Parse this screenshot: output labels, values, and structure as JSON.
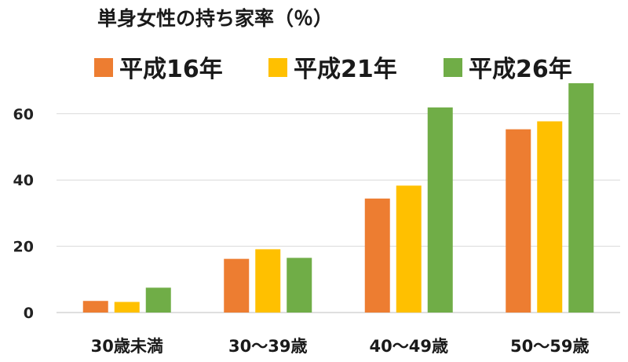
{
  "chart_data": {
    "type": "bar",
    "title": "単身女性の持ち家率（％）",
    "categories": [
      "30歳未満",
      "30～39歳",
      "40～49歳",
      "50～59歳"
    ],
    "series": [
      {
        "name": "平成16年",
        "color": "#ED7D31",
        "values": [
          3.5,
          16.2,
          34.4,
          55.3
        ]
      },
      {
        "name": "平成21年",
        "color": "#FFC000",
        "values": [
          3.2,
          19.1,
          38.3,
          57.7
        ]
      },
      {
        "name": "平成26年",
        "color": "#70AD47",
        "values": [
          7.5,
          16.5,
          61.9,
          69.2
        ]
      }
    ],
    "yticks": [
      0,
      20,
      40,
      60
    ],
    "ylim": [
      0,
      70
    ],
    "grid": true,
    "legend": "top"
  }
}
